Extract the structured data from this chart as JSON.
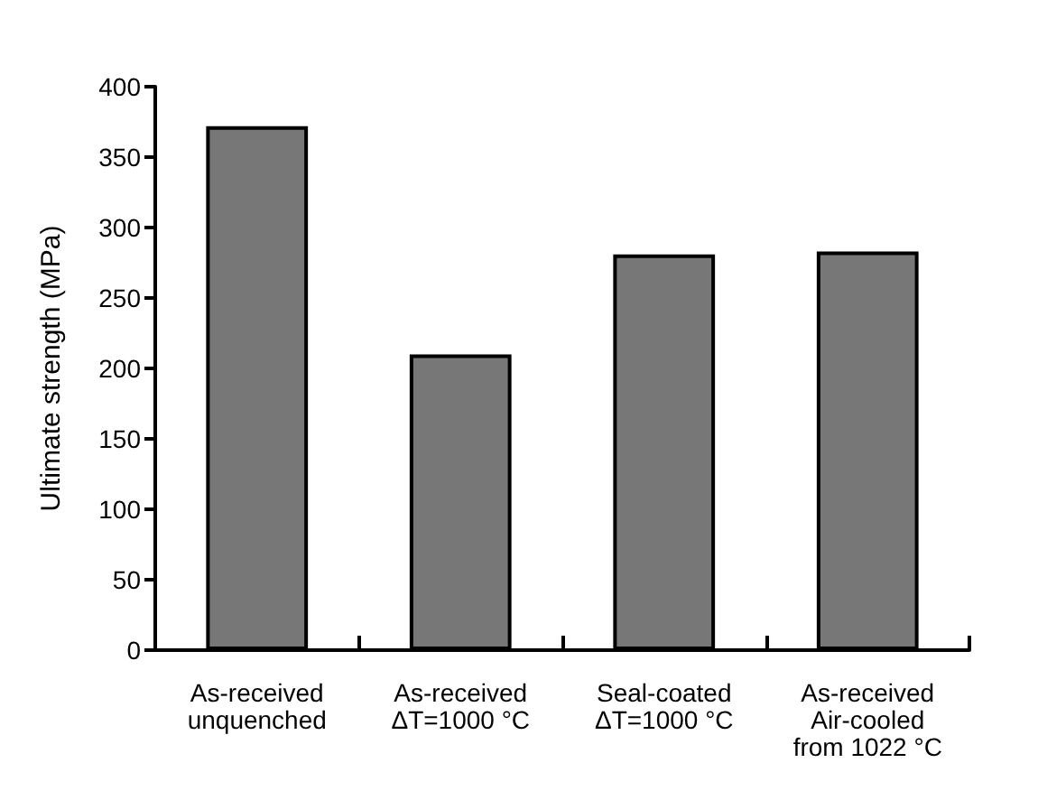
{
  "chart_data": {
    "type": "bar",
    "ylabel": "Ultimate strength (MPa)",
    "categories": [
      "As-received\nunquenched",
      "As-received\nΔT=1000 °C",
      "Seal-coated\nΔT=1000 °C",
      "As-received\nAir-cooled\nfrom 1022 °C"
    ],
    "values": [
      372,
      210,
      281,
      283
    ],
    "color": "#777777",
    "ylim": [
      0,
      400
    ],
    "yticks": [
      0,
      50,
      100,
      150,
      200,
      250,
      300,
      350,
      400
    ],
    "grid": false
  }
}
